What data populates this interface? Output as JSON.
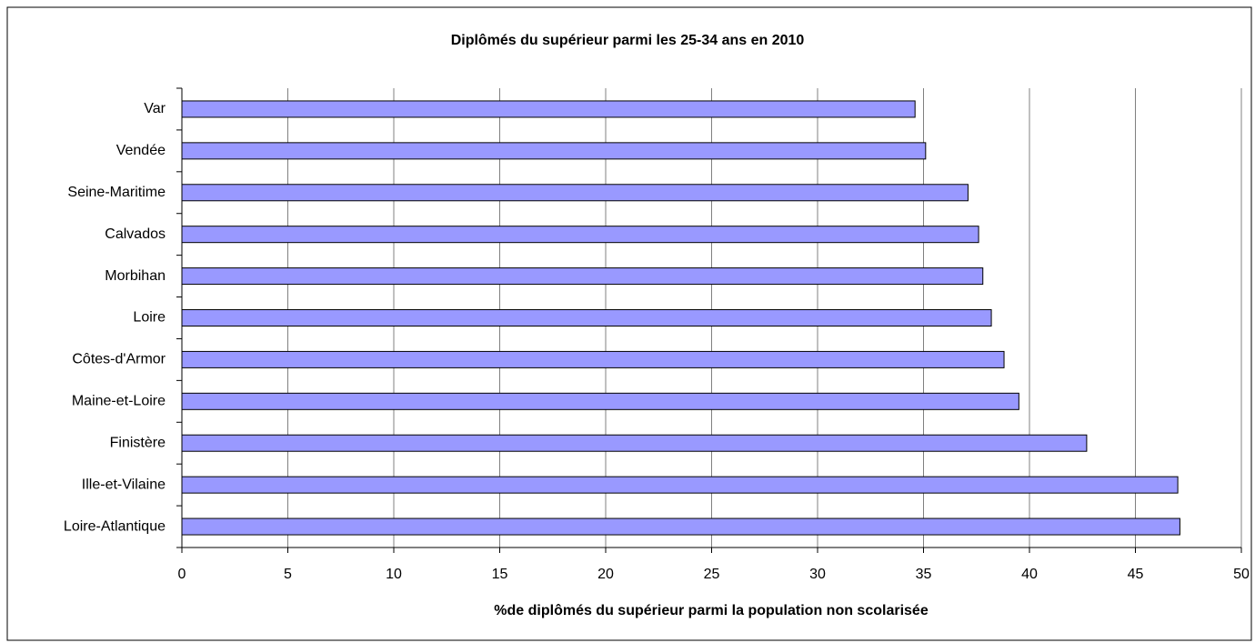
{
  "chart_data": {
    "type": "bar",
    "orientation": "horizontal",
    "title": "Diplômés du supérieur parmi les 25-34 ans en 2010",
    "xlabel": "%de diplômés du supérieur parmi la population non scolarisée",
    "categories": [
      "Var",
      "Vendée",
      "Seine-Maritime",
      "Calvados",
      "Morbihan",
      "Loire",
      "Côtes-d'Armor",
      "Maine-et-Loire",
      "Finistère",
      "Ille-et-Vilaine",
      "Loire-Atlantique"
    ],
    "values": [
      34.6,
      35.1,
      37.1,
      37.6,
      37.8,
      38.2,
      38.8,
      39.5,
      42.7,
      47.0,
      47.1
    ],
    "color": "#9999ff",
    "xlim": [
      0,
      50
    ],
    "xticks": [
      0,
      5,
      10,
      15,
      20,
      25,
      30,
      35,
      40,
      45,
      50
    ],
    "grid": true
  }
}
